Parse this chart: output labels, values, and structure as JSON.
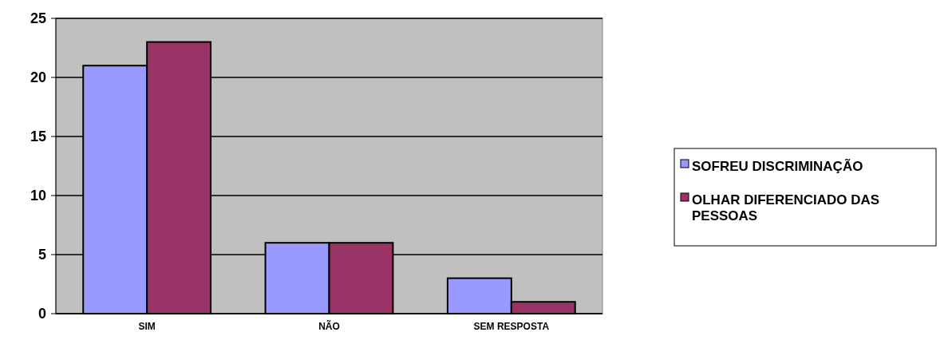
{
  "chart_data": {
    "type": "bar",
    "categories": [
      "SIM",
      "NÃO",
      "SEM RESPOSTA"
    ],
    "series": [
      {
        "name": "SOFREU DISCRIMINAÇÃO",
        "color": "#9999ff",
        "values": [
          21,
          6,
          3
        ]
      },
      {
        "name": "OLHAR DIFERENCIADO DAS PESSOAS",
        "color": "#993366",
        "values": [
          23,
          6,
          1
        ]
      }
    ],
    "ylim": [
      0,
      25
    ],
    "yticks": [
      0,
      5,
      10,
      15,
      20,
      25
    ],
    "grid": "y",
    "legend": "right"
  }
}
